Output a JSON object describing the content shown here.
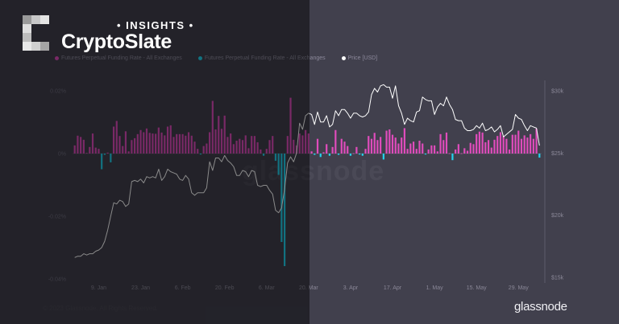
{
  "chart_data": {
    "type": "bar+line",
    "x_range": [
      "2023-01-01",
      "2023-06-05"
    ],
    "x_interval": "daily",
    "x_ticks": [
      "9. Jan",
      "23. Jan",
      "6. Feb",
      "20. Feb",
      "6. Mar",
      "20. Mar",
      "3. Apr",
      "17. Apr",
      "1. May",
      "15. May",
      "29. May"
    ],
    "x_tick_dates": [
      "2023-01-09",
      "2023-01-23",
      "2023-02-06",
      "2023-02-20",
      "2023-03-06",
      "2023-03-20",
      "2023-04-03",
      "2023-04-17",
      "2023-05-01",
      "2023-05-15",
      "2023-05-29"
    ],
    "y_left": {
      "ticks": [
        "0.02%",
        "0%",
        "-0.02%",
        "-0.04%"
      ],
      "tick_values": [
        0.02,
        0,
        -0.02,
        -0.04
      ],
      "range": [
        -0.04,
        0.02
      ],
      "unit": "%"
    },
    "y_right": {
      "ticks": [
        "$30k",
        "$25k",
        "$20k",
        "$15k"
      ],
      "tick_values": [
        30,
        25,
        20,
        15
      ],
      "range": [
        15,
        30
      ],
      "unit": "$k"
    },
    "legend": [
      {
        "label": "Futures Perpetual Funding Rate - All Exchanges",
        "color": "#e04cbc"
      },
      {
        "label": "Futures Perpetual Funding Rate - All Exchanges",
        "color": "#22d3ee"
      },
      {
        "label": "Price [USD]",
        "color": "#ffffff"
      }
    ],
    "legend_placement": "top-left",
    "grid": false,
    "series": [
      {
        "kind": "bar",
        "axis": "left",
        "positive_color": "#e04cbc",
        "negative_color": "#22d3ee",
        "values": [
          0.0026,
          0.0057,
          0.0053,
          0.0044,
          0.0002,
          0.0021,
          0.0064,
          0.0019,
          0.0015,
          -0.005,
          -0.0004,
          0.0003,
          -0.0028,
          0.0086,
          0.0104,
          0.0056,
          0.0024,
          0.0071,
          0.0007,
          0.0043,
          0.0049,
          0.0062,
          0.0075,
          0.0068,
          0.008,
          0.0066,
          0.0064,
          0.0063,
          0.0083,
          0.0067,
          0.0058,
          0.0086,
          0.009,
          0.0053,
          0.0062,
          0.0062,
          0.0062,
          0.0057,
          0.0068,
          0.0057,
          0.0038,
          0.0015,
          -0.0003,
          0.0024,
          0.0032,
          0.0068,
          0.0168,
          0.0077,
          0.012,
          0.0079,
          0.0121,
          0.0053,
          0.0064,
          0.003,
          0.0041,
          0.0047,
          0.0043,
          0.0058,
          0.0017,
          0.0056,
          0.0056,
          0.0036,
          0.0013,
          -0.0007,
          0.0015,
          0.0043,
          0.0056,
          -0.0023,
          -0.0068,
          -0.0282,
          -0.0359,
          0.0056,
          0.0178,
          0.0044,
          0.0026,
          0.0064,
          0.0058,
          0.0075,
          0.0064,
          0.0007,
          -0.0004,
          0.0047,
          -0.0011,
          0.0004,
          0.003,
          -0.0007,
          0.0021,
          0.0075,
          -0.0004,
          0.0047,
          0.0038,
          0.0024,
          -0.0007,
          0.0001,
          0.0021,
          -0.0003,
          -0.0007,
          0.0015,
          0.0056,
          0.0047,
          0.0066,
          0.0043,
          0.0053,
          -0.0019,
          0.0073,
          0.0077,
          0.006,
          0.0051,
          0.0032,
          0.0051,
          0.0081,
          0.0015,
          0.0032,
          0.0038,
          0.0015,
          0.0041,
          0.0032,
          -0.0003,
          0.0013,
          0.0026,
          0.0026,
          0.0007,
          0.0062,
          0.0043,
          0.0067,
          0.0001,
          -0.0021,
          0.0013,
          0.003,
          0.0001,
          0.0017,
          0.0009,
          0.0034,
          0.003,
          0.0062,
          0.007,
          0.0067,
          0.0036,
          0.0043,
          0.0019,
          0.0044,
          0.0056,
          0.0068,
          0.0056,
          0.0047,
          0.0013,
          0.006,
          0.006,
          0.0073,
          0.0047,
          0.0058,
          0.0051,
          0.0062,
          0.0047,
          0.0079,
          -0.0013
        ]
      },
      {
        "kind": "line",
        "axis": "right",
        "color": "#ffffff",
        "values": [
          16.6,
          16.7,
          16.7,
          16.9,
          16.8,
          16.9,
          16.9,
          17.1,
          17.2,
          17.4,
          17.9,
          18.8,
          19.9,
          21.0,
          20.9,
          21.2,
          21.1,
          20.7,
          20.9,
          22.7,
          22.8,
          22.7,
          22.9,
          22.6,
          23.1,
          23.0,
          23.1,
          23.0,
          23.7,
          22.8,
          23.1,
          23.7,
          23.5,
          23.4,
          23.3,
          22.9,
          22.8,
          23.2,
          22.9,
          21.8,
          21.6,
          21.8,
          21.8,
          21.8,
          22.2,
          24.3,
          23.6,
          24.6,
          24.6,
          24.3,
          24.8,
          24.4,
          24.2,
          23.9,
          23.2,
          23.2,
          23.6,
          23.5,
          23.1,
          23.6,
          23.5,
          22.4,
          22.3,
          22.4,
          22.4,
          22.0,
          21.7,
          20.4,
          20.2,
          20.6,
          22.1,
          24.2,
          24.7,
          24.3,
          25.0,
          27.4,
          26.9,
          28.0,
          28.2,
          28.1,
          27.3,
          28.3,
          27.5,
          27.5,
          28.0,
          27.1,
          27.3,
          28.4,
          28.0,
          28.5,
          28.5,
          28.2,
          27.8,
          28.2,
          28.2,
          28.0,
          27.9,
          28.0,
          28.3,
          29.7,
          30.2,
          29.9,
          30.4,
          30.5,
          30.3,
          30.3,
          29.4,
          30.4,
          28.8,
          28.2,
          27.3,
          27.8,
          27.6,
          27.5,
          28.3,
          28.4,
          29.5,
          29.3,
          29.2,
          29.2,
          28.1,
          28.7,
          29.0,
          28.8,
          29.5,
          28.9,
          28.5,
          27.7,
          27.6,
          27.6,
          27.0,
          26.8,
          26.8,
          26.9,
          27.2,
          27.0,
          27.4,
          26.8,
          26.9,
          27.1,
          26.7,
          26.9,
          27.2,
          26.3,
          26.5,
          26.7,
          26.9,
          28.1,
          27.8,
          27.7,
          27.2,
          26.8,
          27.2,
          27.1,
          27.0,
          25.6
        ]
      }
    ]
  },
  "branding": {
    "insights": "• INSIGHTS •",
    "name": "CryptoSlate",
    "watermark": "glassnode",
    "footer": "© 2023 Glassnode. All Rights Reserved.",
    "provider_logo": "glassnode"
  },
  "colors": {
    "background": "#41404d",
    "overlay": "#232129",
    "positive": "#e04cbc",
    "negative": "#22d3ee",
    "price": "#ffffff"
  }
}
